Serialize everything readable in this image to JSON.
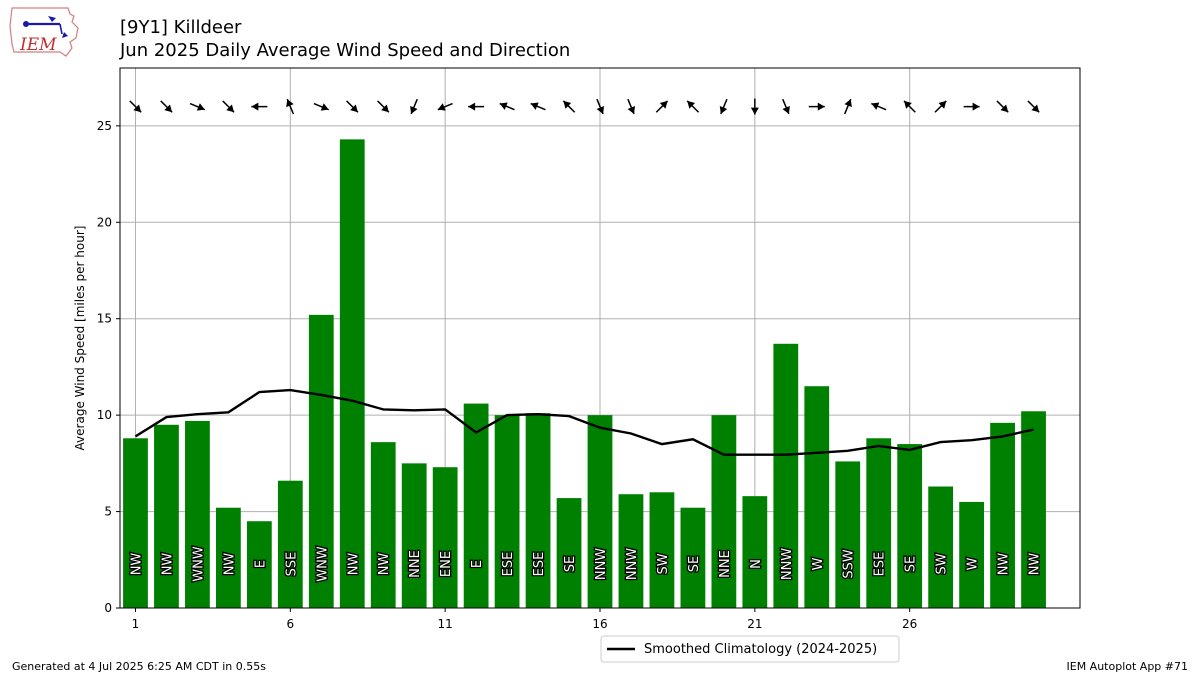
{
  "logo_text": "IEM",
  "title_line1": "[9Y1] Killdeer",
  "title_line2": "Jun 2025 Daily Average Wind Speed and Direction",
  "footer_left": "Generated at 4 Jul 2025 6:25 AM CDT in 0.55s",
  "footer_right": "IEM Autoplot App #71",
  "colors": {
    "bar": "#008000",
    "climo": "#000000",
    "grid": "#b0b0b0"
  },
  "chart_data": {
    "type": "bar",
    "title": "Jun 2025 Daily Average Wind Speed and Direction",
    "ylabel": "Average Wind Speed [miles per hour]",
    "xlim": [
      0.5,
      31.5
    ],
    "ylim": [
      0,
      28
    ],
    "xticks": [
      1,
      6,
      11,
      16,
      21,
      26
    ],
    "yticks": [
      0,
      5,
      10,
      15,
      20,
      25
    ],
    "grid": true,
    "legend_position": "bottom-center",
    "days": [
      1,
      2,
      3,
      4,
      5,
      6,
      7,
      8,
      9,
      10,
      11,
      12,
      13,
      14,
      15,
      16,
      17,
      18,
      19,
      20,
      21,
      22,
      23,
      24,
      25,
      26,
      27,
      28,
      29,
      30
    ],
    "speed": [
      8.8,
      9.5,
      9.7,
      5.2,
      4.5,
      6.6,
      15.2,
      24.3,
      8.6,
      7.5,
      7.3,
      10.6,
      10.0,
      10.1,
      5.7,
      10.0,
      5.9,
      6.0,
      5.2,
      10.0,
      5.8,
      13.7,
      11.5,
      7.6,
      8.8,
      8.5,
      6.3,
      5.5,
      9.6,
      10.2
    ],
    "direction": [
      "NW",
      "NW",
      "WNW",
      "NW",
      "E",
      "SSE",
      "WNW",
      "NW",
      "NW",
      "NNE",
      "ENE",
      "E",
      "ESE",
      "ESE",
      "SE",
      "NNW",
      "NNW",
      "SW",
      "SE",
      "NNE",
      "N",
      "NNW",
      "W",
      "SSW",
      "ESE",
      "SE",
      "SW",
      "W",
      "NW",
      "NW"
    ],
    "arrow_y": 26,
    "series": [
      {
        "name": "Smoothed Climatology (2024-2025)",
        "values": [
          8.9,
          9.9,
          10.05,
          10.15,
          11.2,
          11.3,
          11.05,
          10.75,
          10.3,
          10.25,
          10.3,
          9.1,
          10.0,
          10.05,
          9.95,
          9.35,
          9.05,
          8.5,
          8.75,
          7.95,
          7.95,
          7.95,
          8.05,
          8.15,
          8.4,
          8.2,
          8.6,
          8.7,
          8.9,
          9.25
        ]
      }
    ]
  }
}
